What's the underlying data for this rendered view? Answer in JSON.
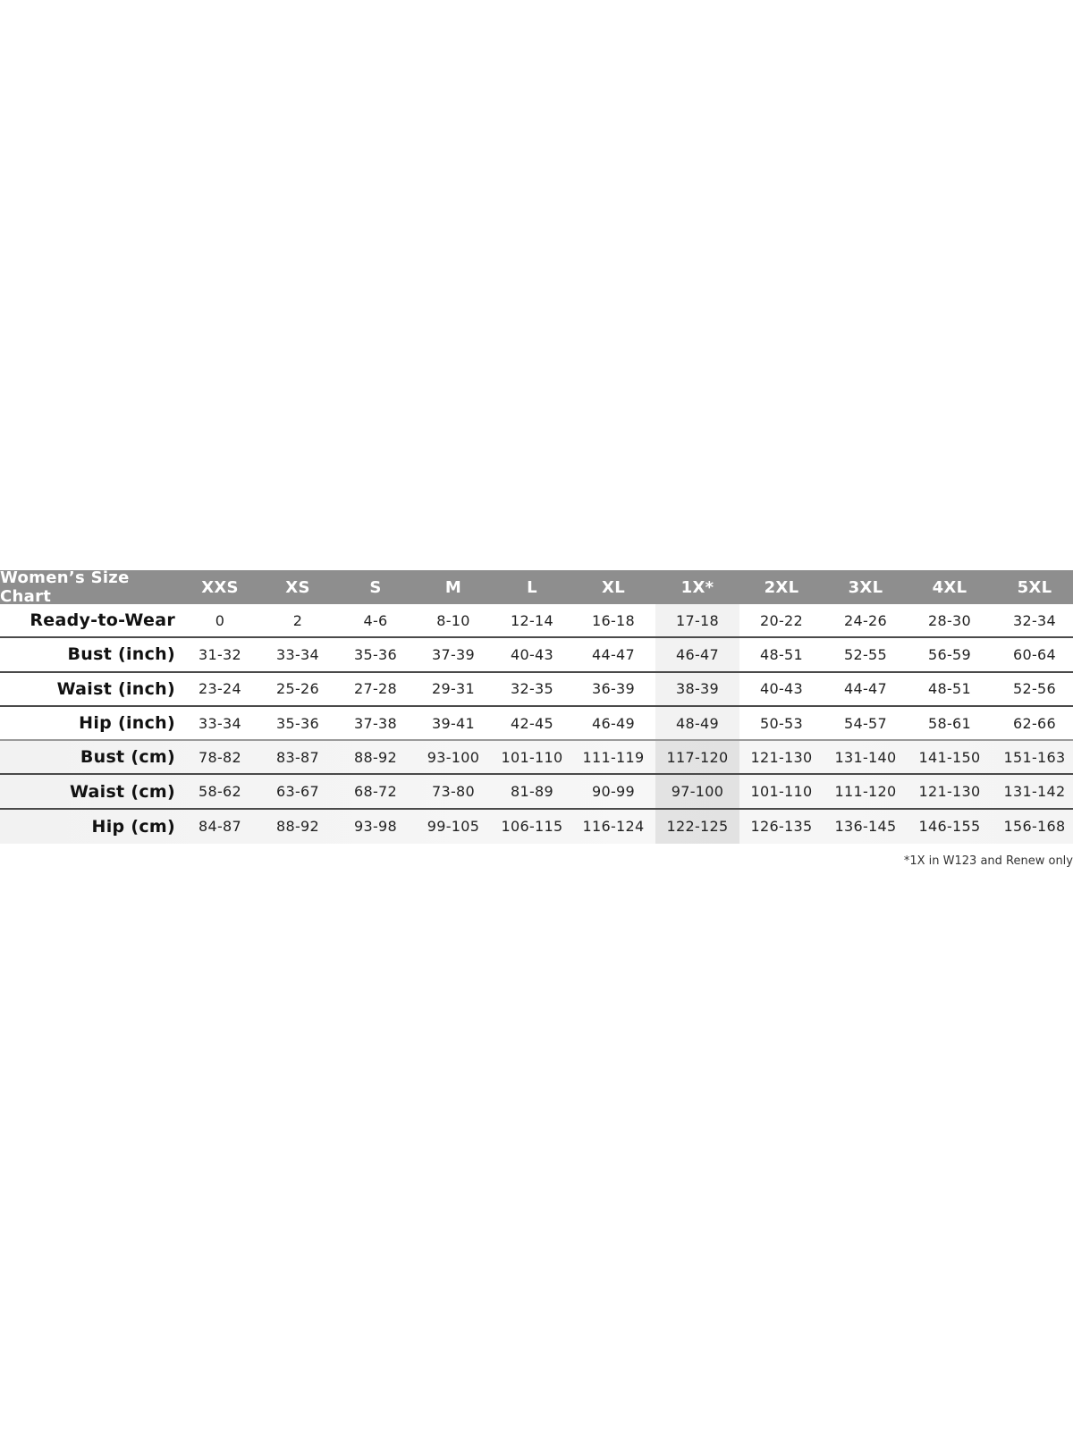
{
  "chart_data": {
    "type": "table",
    "title": "Women’s Size Chart",
    "columns": [
      "XXS",
      "XS",
      "S",
      "M",
      "L",
      "XL",
      "1X*",
      "2XL",
      "3XL",
      "4XL",
      "5XL"
    ],
    "highlighted_column": "1X*",
    "colors": {
      "header_bg": "#8e8e8e",
      "header_text": "#ffffff",
      "cm_rows_bg": "#f3f3f3",
      "divider": "#4a4a4a"
    },
    "rows": [
      {
        "label": "Ready-to-Wear",
        "values": [
          "0",
          "2",
          "4-6",
          "8-10",
          "12-14",
          "16-18",
          "17-18",
          "20-22",
          "24-26",
          "28-30",
          "32-34"
        ]
      },
      {
        "label": "Bust (inch)",
        "values": [
          "31-32",
          "33-34",
          "35-36",
          "37-39",
          "40-43",
          "44-47",
          "46-47",
          "48-51",
          "52-55",
          "56-59",
          "60-64"
        ]
      },
      {
        "label": "Waist (inch)",
        "values": [
          "23-24",
          "25-26",
          "27-28",
          "29-31",
          "32-35",
          "36-39",
          "38-39",
          "40-43",
          "44-47",
          "48-51",
          "52-56"
        ]
      },
      {
        "label": "Hip (inch)",
        "values": [
          "33-34",
          "35-36",
          "37-38",
          "39-41",
          "42-45",
          "46-49",
          "48-49",
          "50-53",
          "54-57",
          "58-61",
          "62-66"
        ]
      },
      {
        "label": "Bust (cm)",
        "values": [
          "78-82",
          "83-87",
          "88-92",
          "93-100",
          "101-110",
          "111-119",
          "117-120",
          "121-130",
          "131-140",
          "141-150",
          "151-163"
        ]
      },
      {
        "label": "Waist (cm)",
        "values": [
          "58-62",
          "63-67",
          "68-72",
          "73-80",
          "81-89",
          "90-99",
          "97-100",
          "101-110",
          "111-120",
          "121-130",
          "131-142"
        ]
      },
      {
        "label": "Hip (cm)",
        "values": [
          "84-87",
          "88-92",
          "93-98",
          "99-105",
          "106-115",
          "116-124",
          "122-125",
          "126-135",
          "136-145",
          "146-155",
          "156-168"
        ]
      }
    ],
    "footnote": "*1X in W123 and Renew only"
  }
}
